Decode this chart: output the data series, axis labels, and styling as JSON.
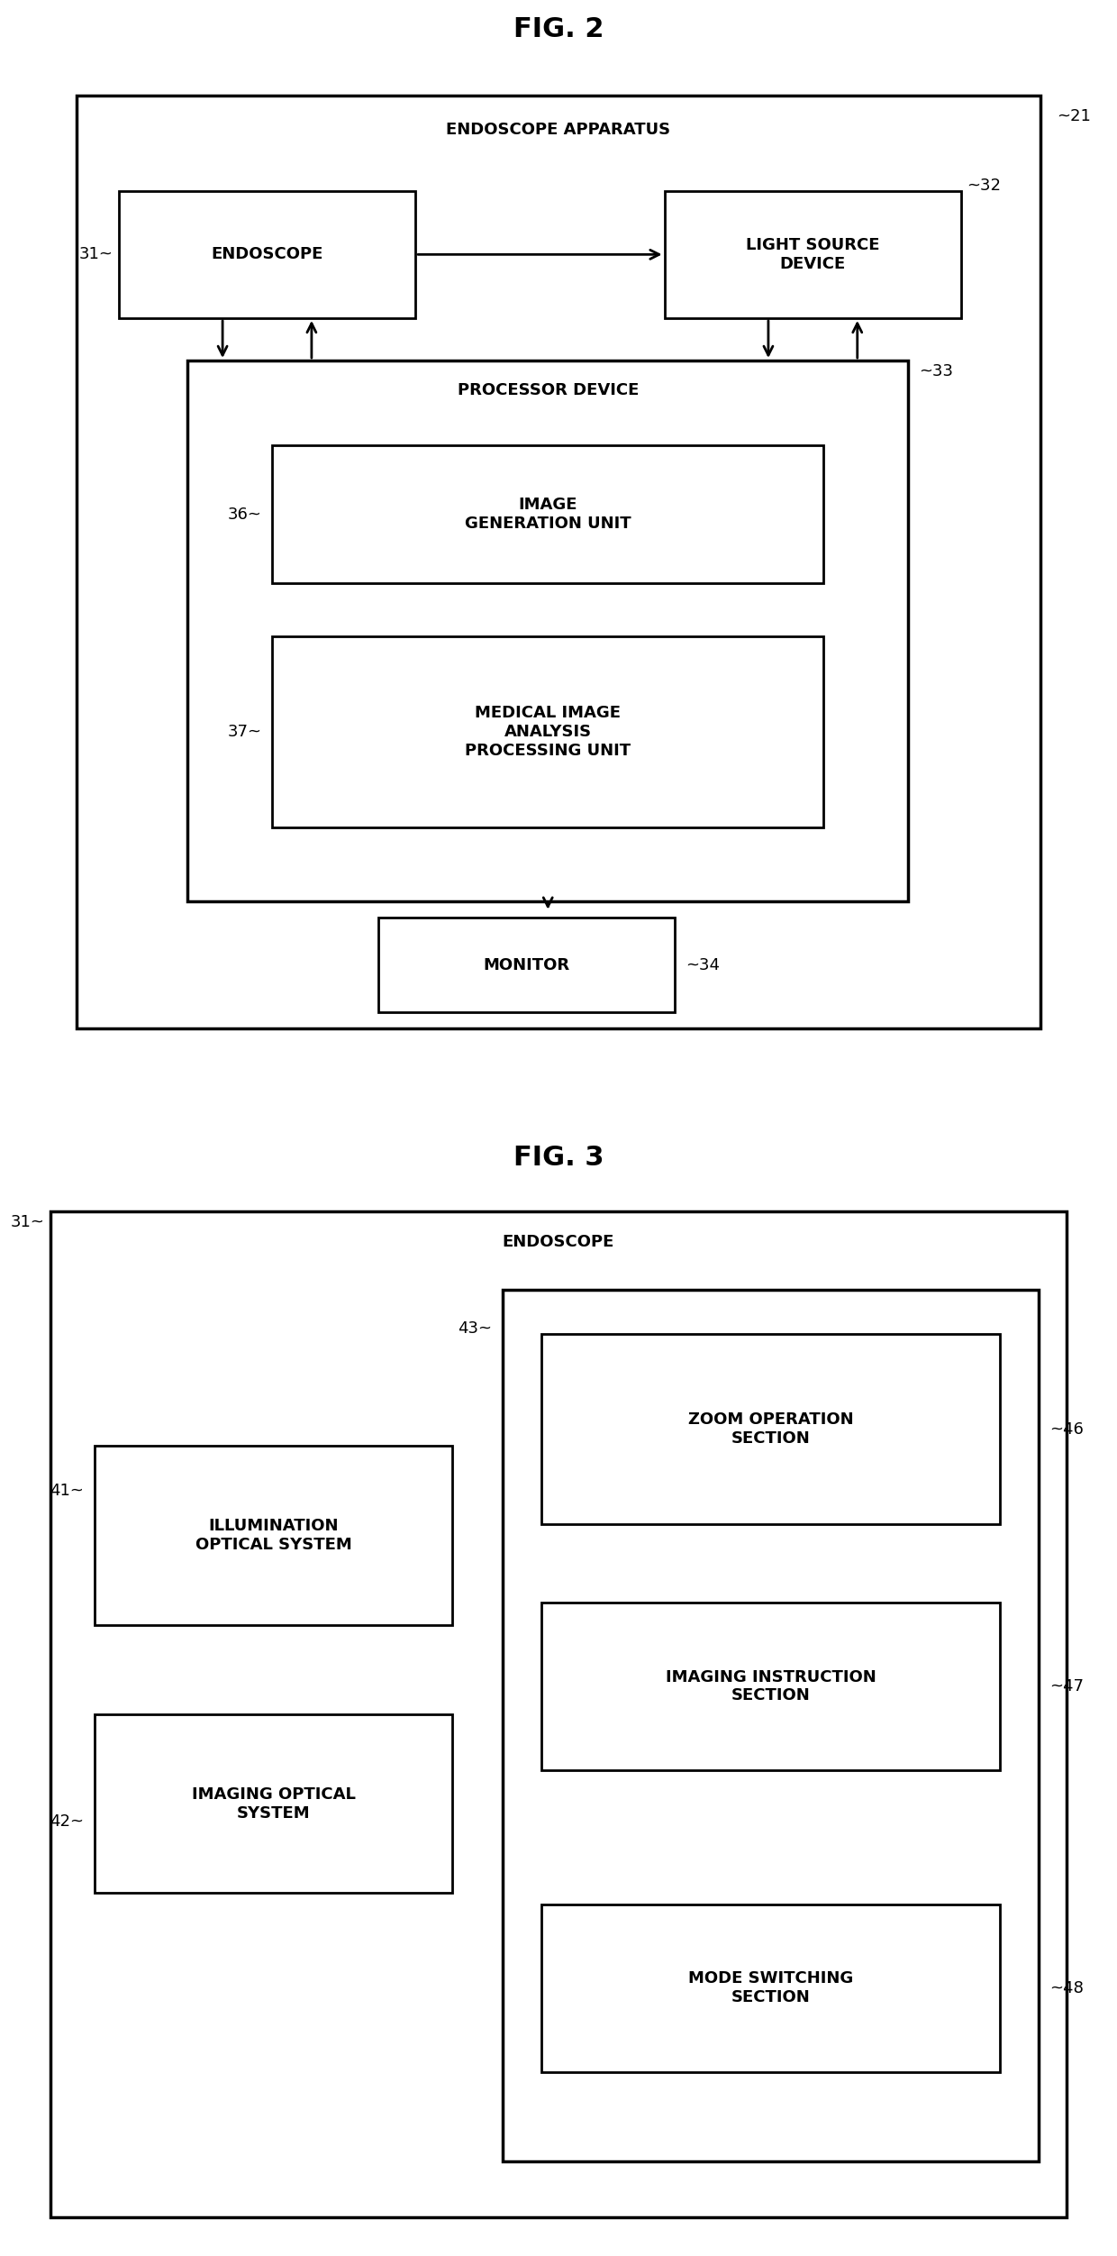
{
  "fig2_title": "FIG. 2",
  "fig3_title": "FIG. 3",
  "bg_color": "#ffffff",
  "box_color": "#ffffff",
  "border_color": "#000000",
  "text_color": "#000000",
  "fig2": {
    "outer_label": "21",
    "outer_title": "ENDOSCOPE APPARATUS",
    "endoscope_label": "31",
    "endoscope_text": "ENDOSCOPE",
    "lightsource_label": "32",
    "lightsource_text": "LIGHT SOURCE\nDEVICE",
    "processor_label": "33",
    "processor_title": "PROCESSOR DEVICE",
    "imagegen_label": "36",
    "imagegen_text": "IMAGE\nGENERATION UNIT",
    "medimage_label": "37",
    "medimage_text": "MEDICAL IMAGE\nANALYSIS\nPROCESSING UNIT",
    "monitor_label": "34",
    "monitor_text": "MONITOR"
  },
  "fig3": {
    "outer_label": "31",
    "outer_title": "ENDOSCOPE",
    "illum_label": "41",
    "illum_text": "ILLUMINATION\nOPTICAL SYSTEM",
    "imaging_label": "42",
    "imaging_text": "IMAGING OPTICAL\nSYSTEM",
    "ops_group_label": "43",
    "zoom_label": "46",
    "zoom_text": "ZOOM OPERATION\nSECTION",
    "imginstr_label": "47",
    "imginstr_text": "IMAGING INSTRUCTION\nSECTION",
    "mode_label": "48",
    "mode_text": "MODE SWITCHING\nSECTION"
  }
}
